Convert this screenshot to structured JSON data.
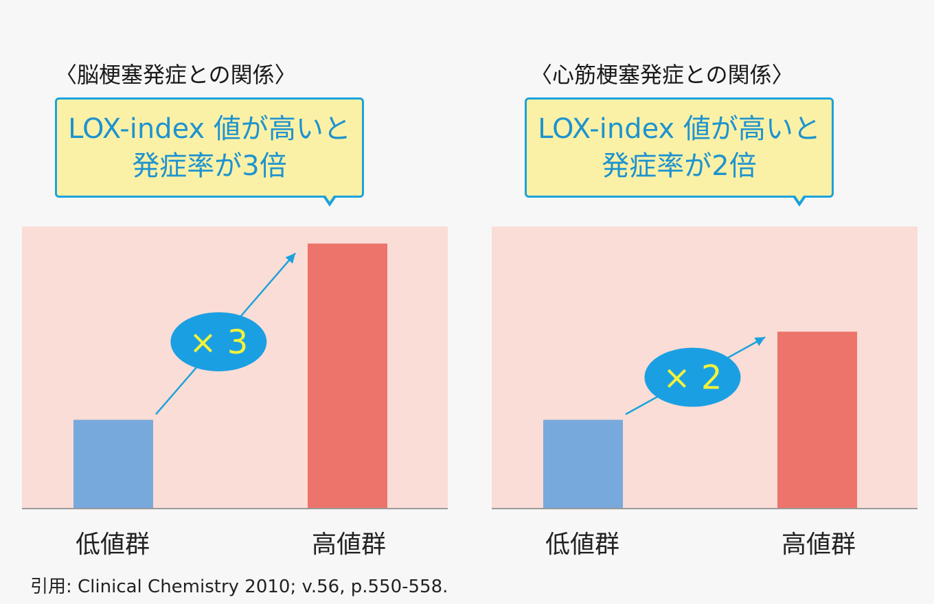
{
  "charts": [
    {
      "title": "〈脳梗塞発症との関係〉",
      "callout": [
        "LOX-index 値が高いと",
        "発症率が3倍"
      ],
      "multiplier_label": "× 3"
    },
    {
      "title": "〈心筋梗塞発症との関係〉",
      "callout": [
        "LOX-index 値が高いと",
        "発症率が2倍"
      ],
      "multiplier_label": "× 2"
    }
  ],
  "chart_data": [
    {
      "type": "bar",
      "title": "〈脳梗塞発症との関係〉",
      "categories": [
        "低値群",
        "高値群"
      ],
      "values": [
        1,
        3
      ],
      "ylim": [
        0,
        3.1
      ],
      "annotation": "× 3",
      "colors": [
        "#78a9dc",
        "#ec746b"
      ]
    },
    {
      "type": "bar",
      "title": "〈心筋梗塞発症との関係〉",
      "categories": [
        "低値群",
        "高値群"
      ],
      "values": [
        1,
        2
      ],
      "ylim": [
        0,
        3.1
      ],
      "annotation": "× 2",
      "colors": [
        "#78a9dc",
        "#ec746b"
      ]
    }
  ],
  "citation": "引用: Clinical Chemistry 2010; v.56, p.550-558.",
  "colors": {
    "accent": "#1ba2dc",
    "callout_bg": "#fbf1a6",
    "plot_bg": "#f9ddd6",
    "badge": "#1b9fe3",
    "badge_text": "#f3f33a",
    "low_bar": "#78a9dc",
    "high_bar": "#ec746b"
  }
}
